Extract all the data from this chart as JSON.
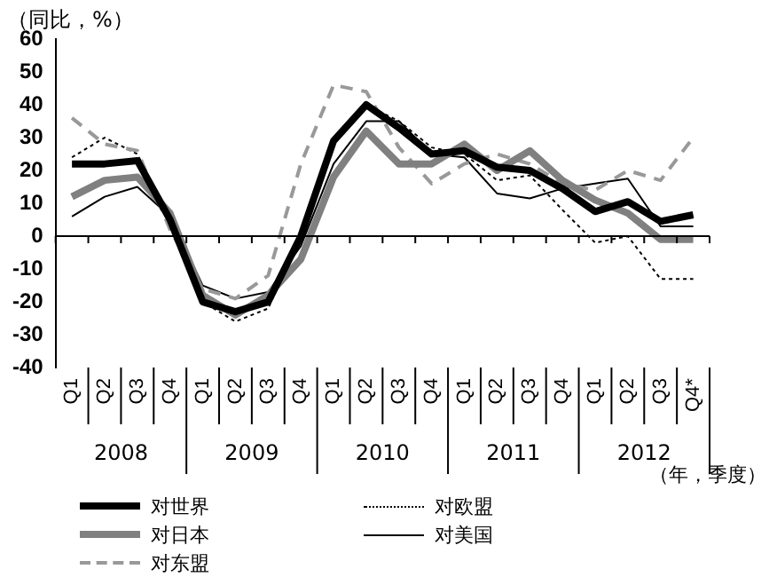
{
  "chart_data": {
    "type": "line",
    "ylabel": "（同比，%）",
    "xlabel": "（年，季度）",
    "categories": [
      "Q1",
      "Q2",
      "Q3",
      "Q4",
      "Q1",
      "Q2",
      "Q3",
      "Q4",
      "Q1",
      "Q2",
      "Q3",
      "Q4",
      "Q1",
      "Q2",
      "Q3",
      "Q4",
      "Q1",
      "Q2",
      "Q3",
      "Q4*"
    ],
    "annotations": [
      "2008",
      "2009",
      "2010",
      "2011",
      "2012"
    ],
    "ylim": [
      -40,
      60
    ],
    "yticks": [
      -40,
      -30,
      -20,
      -10,
      0,
      10,
      20,
      30,
      40,
      50,
      60
    ],
    "grid": false,
    "ref_lines": [
      {
        "axis": "y",
        "value": 0,
        "color": "#000000"
      }
    ],
    "legend": "bottom",
    "marker": "none",
    "series": [
      {
        "name": "对世界",
        "color": "#000000",
        "line_style": "solid",
        "values": [
          22,
          22,
          23,
          5,
          -20,
          -23,
          -20,
          0,
          29,
          40,
          33,
          25,
          26,
          21,
          20,
          14.5,
          7.5,
          10.5,
          4.5,
          6.5
        ]
      },
      {
        "name": "对日本",
        "color": "#808080",
        "line_style": "solid",
        "values": [
          12,
          17,
          18,
          7,
          -18,
          -24,
          -18,
          -7,
          18,
          32,
          22,
          22,
          28,
          20,
          26,
          17,
          11,
          7,
          -1,
          -1
        ]
      },
      {
        "name": "对东盟",
        "color": "#999999",
        "line_style": "dashed",
        "values": [
          36,
          28,
          26,
          2,
          -16,
          -19,
          -12,
          22,
          46,
          44,
          27,
          16,
          22,
          25,
          22,
          16,
          14,
          20,
          17,
          30
        ]
      },
      {
        "name": "对欧盟",
        "color": "#000000",
        "line_style": "dotted",
        "values": [
          24,
          30,
          25,
          5,
          -20,
          -26,
          -22,
          0,
          30,
          40,
          35,
          27,
          25,
          17,
          18.5,
          8,
          -2,
          0,
          -13,
          -13
        ]
      },
      {
        "name": "对美国",
        "color": "#000000",
        "line_style": "solid",
        "values": [
          6,
          12,
          15,
          6,
          -15,
          -19,
          -17,
          -3,
          22,
          35,
          35,
          25,
          24,
          13,
          11.5,
          14.5,
          16,
          17.5,
          3,
          3
        ]
      }
    ]
  }
}
